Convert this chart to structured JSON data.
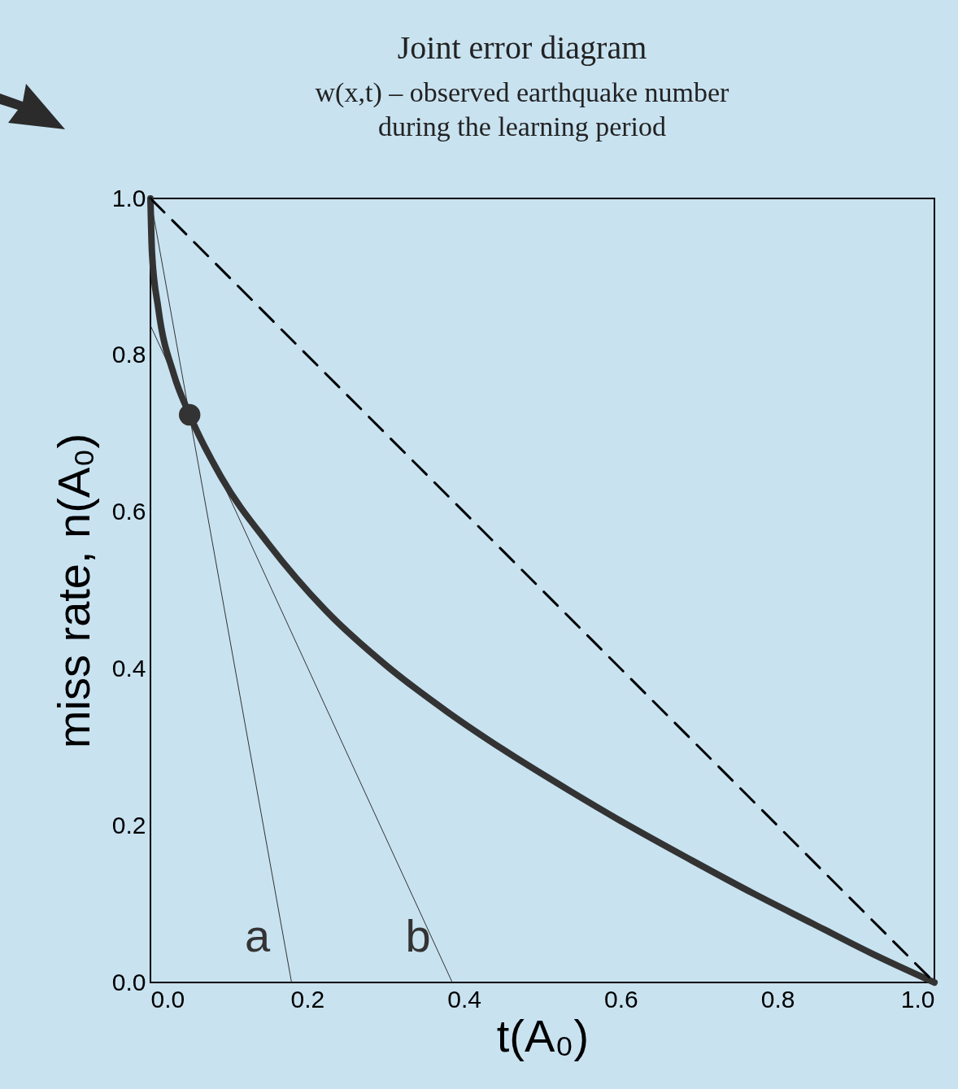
{
  "chart_data": {
    "type": "line",
    "title": "Joint error diagram",
    "subtitle": "w(x,t) – observed earthquake number\nduring the learning period",
    "xlabel": "t(A₀)",
    "ylabel": "miss rate, n(A₀)",
    "xlim": [
      0,
      1
    ],
    "ylim": [
      0,
      1
    ],
    "xticks": [
      {
        "value": 0,
        "label": "0.0"
      },
      0.2,
      0.4,
      0.6,
      0.8,
      {
        "value": 1,
        "label": "1.0"
      }
    ],
    "yticks": [
      {
        "value": 0,
        "label": "0.0"
      },
      0.2,
      0.4,
      0.6,
      0.8,
      {
        "value": 1,
        "label": "1.0"
      }
    ],
    "grid": false,
    "series": [
      {
        "color": "#333333",
        "x": [
          0,
          0.002,
          0.01,
          0.03,
          0.05,
          0.09,
          0.15,
          0.223,
          0.3,
          0.379,
          0.45,
          0.534,
          0.6,
          0.69,
          0.77,
          0.845,
          0.92,
          1
        ],
        "values": [
          1,
          0.93,
          0.86,
          0.775,
          0.724,
          0.645,
          0.56,
          0.475,
          0.405,
          0.345,
          0.297,
          0.245,
          0.206,
          0.156,
          0.113,
          0.075,
          0.037,
          0
        ]
      },
      {
        "color": "#000000",
        "line_style": "dashed",
        "x": [
          0,
          1
        ],
        "values": [
          1,
          0
        ]
      },
      {
        "name": "a",
        "color": "#333333",
        "x": [
          0,
          0.18
        ],
        "values": [
          1,
          0
        ]
      },
      {
        "name": "b",
        "color": "#333333",
        "x": [
          0,
          0.385
        ],
        "values": [
          0.838,
          0
        ]
      },
      {
        "type": "scatter",
        "color": "#333333",
        "marker": "circle",
        "x": [
          0.05
        ],
        "values": [
          0.724
        ]
      }
    ]
  }
}
